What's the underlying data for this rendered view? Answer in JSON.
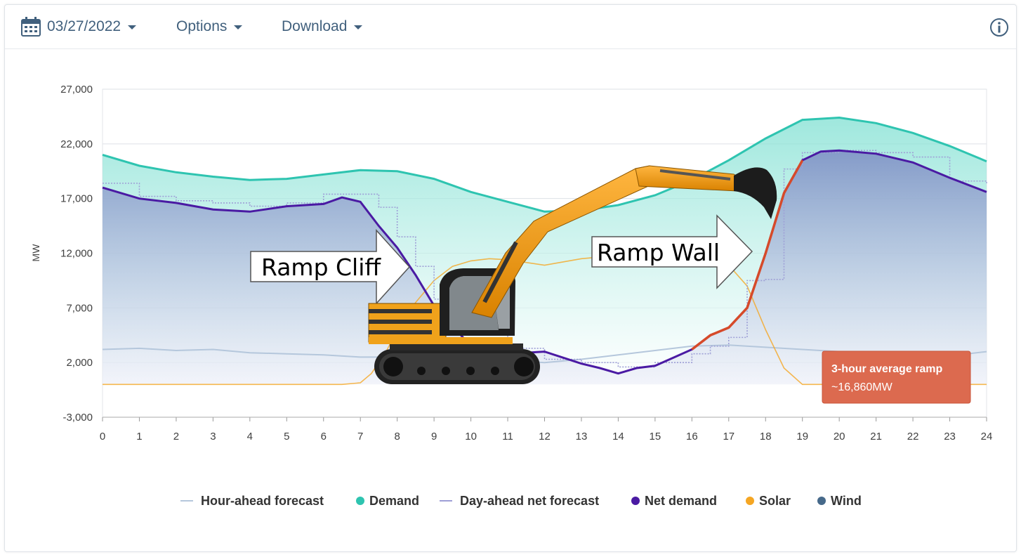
{
  "toolbar": {
    "date": "03/27/2022",
    "options_label": "Options",
    "download_label": "Download",
    "calendar_icon": "calendar-icon",
    "info_icon": "info-icon"
  },
  "colors": {
    "demand": "#2ec4b0",
    "net_demand": "#4a1aa3",
    "solar": "#f5a623",
    "wind": "#46698a",
    "hour_ahead": "#b5c7dc",
    "day_ahead": "#9e9fd6",
    "ramp": "#d64a2a",
    "callout_bg": "#dc6a4f",
    "text_toolbar": "#41607d"
  },
  "chart_data": {
    "type": "line",
    "ylabel": "MW",
    "xlabel": "",
    "ylim": [
      -3000,
      27000
    ],
    "xlim": [
      0,
      24
    ],
    "yticks": [
      "27,000",
      "22,000",
      "17,000",
      "12,000",
      "7,000",
      "2,000",
      "-3,000"
    ],
    "ytick_values": [
      27000,
      22000,
      17000,
      12000,
      7000,
      2000,
      -3000
    ],
    "xticks": [
      "0",
      "1",
      "2",
      "3",
      "4",
      "5",
      "6",
      "7",
      "8",
      "9",
      "10",
      "11",
      "12",
      "13",
      "14",
      "15",
      "16",
      "17",
      "18",
      "19",
      "20",
      "21",
      "22",
      "23",
      "24"
    ],
    "grid": true,
    "legend_position": "bottom",
    "series": [
      {
        "name": "Hour-ahead forecast",
        "style": "thin-line",
        "x": [
          0,
          1,
          2,
          3,
          4,
          5,
          6,
          7,
          8,
          9,
          10,
          11,
          12,
          13,
          14,
          15,
          16,
          17,
          18,
          19,
          20,
          21,
          22,
          23,
          24
        ],
        "values": [
          3200,
          3300,
          3100,
          3200,
          2900,
          2800,
          2700,
          2500,
          2500,
          2600,
          2300,
          2200,
          2000,
          2300,
          2700,
          3100,
          3500,
          3600,
          3400,
          3200,
          3000,
          2900,
          2800,
          2600,
          3000
        ]
      },
      {
        "name": "Demand",
        "style": "line",
        "x": [
          0,
          1,
          2,
          3,
          4,
          5,
          6,
          7,
          8,
          9,
          10,
          11,
          12,
          13,
          14,
          15,
          16,
          17,
          18,
          19,
          20,
          21,
          22,
          23,
          24
        ],
        "values": [
          21000,
          20000,
          19400,
          19000,
          18700,
          18800,
          19200,
          19600,
          19500,
          18800,
          17600,
          16700,
          15800,
          15900,
          16400,
          17300,
          18700,
          20500,
          22500,
          24200,
          24400,
          23900,
          23000,
          21800,
          20400
        ]
      },
      {
        "name": "Day-ahead net forecast",
        "style": "dotted-step",
        "x": [
          0,
          0.5,
          1,
          2,
          3,
          4,
          5,
          6,
          7,
          7.5,
          8,
          8.5,
          9,
          10,
          11,
          12,
          13,
          14,
          15,
          16,
          16.5,
          17,
          17.5,
          18,
          18.5,
          19,
          20,
          21,
          22,
          23,
          24
        ],
        "values": [
          18400,
          18400,
          17200,
          16800,
          16600,
          16300,
          16600,
          17400,
          17400,
          16200,
          13500,
          10800,
          7800,
          4500,
          3300,
          2300,
          2000,
          1600,
          2000,
          2800,
          3500,
          4300,
          9500,
          9600,
          19700,
          21200,
          21400,
          21200,
          20800,
          18600,
          18400
        ]
      },
      {
        "name": "Net demand",
        "style": "line",
        "x": [
          0,
          1,
          2,
          3,
          4,
          5,
          6,
          6.5,
          7,
          7.5,
          8,
          8.5,
          9,
          10,
          11,
          11.5,
          12,
          13,
          13.5,
          14,
          14.5,
          15,
          16,
          16.5,
          17,
          17.5,
          18,
          18.5,
          19,
          19.5,
          20,
          21,
          22,
          23,
          24
        ],
        "values": [
          18000,
          17000,
          16600,
          16000,
          15800,
          16300,
          16500,
          17100,
          16700,
          14500,
          12500,
          10000,
          7200,
          3500,
          2000,
          2900,
          3000,
          1900,
          1500,
          1000,
          1500,
          1700,
          3200,
          4500,
          5200,
          7000,
          12000,
          17500,
          20500,
          21300,
          21400,
          21100,
          20300,
          18900,
          17600
        ]
      },
      {
        "name": "Solar",
        "style": "thin-line",
        "x": [
          0,
          6.5,
          7,
          7.3,
          7.7,
          8,
          8.5,
          9,
          9.5,
          10,
          10.5,
          11,
          12,
          13,
          14,
          15,
          16,
          17,
          17.5,
          18,
          18.5,
          19,
          24
        ],
        "values": [
          0,
          0,
          150,
          1000,
          3000,
          5000,
          7500,
          9500,
          10800,
          11300,
          11500,
          11400,
          10900,
          11500,
          11800,
          12000,
          11800,
          10900,
          9000,
          5000,
          1500,
          0,
          0
        ]
      },
      {
        "name": "Wind",
        "style": "none",
        "x": [],
        "values": []
      }
    ],
    "ramp_segment": {
      "x": [
        16,
        16.5,
        17,
        17.5,
        18,
        18.5,
        19
      ],
      "values": [
        3200,
        4500,
        5200,
        7000,
        12000,
        17500,
        20500
      ]
    },
    "annotations": {
      "ramp_cliff": "Ramp Cliff",
      "ramp_wall": "Ramp Wall",
      "ramp_title": "3-hour average ramp",
      "ramp_value": "~16,860MW"
    }
  }
}
